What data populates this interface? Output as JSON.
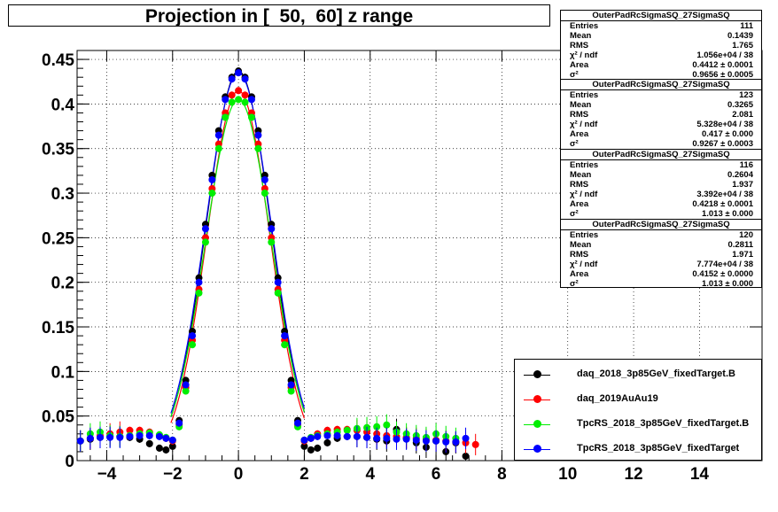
{
  "chart_data": {
    "type": "scatter",
    "title": "Projection in [  50,  60] z range",
    "xlim": [
      -4.9,
      15.9
    ],
    "ylim": [
      0,
      0.46
    ],
    "x_ticks": [
      -4,
      -2,
      0,
      2,
      4,
      6,
      8,
      10,
      12,
      14
    ],
    "x_tick_labels": [
      "−4",
      "−2",
      "0",
      "2",
      "4",
      "6",
      "8",
      "10",
      "12",
      "14"
    ],
    "y_ticks": [
      0,
      0.05,
      0.1,
      0.15,
      0.2,
      0.25,
      0.3,
      0.35,
      0.4,
      0.45
    ],
    "y_tick_labels": [
      "0",
      "0.05",
      "0.1",
      "0.15",
      "0.2",
      "0.25",
      "0.3",
      "0.35",
      "0.4",
      "0.45"
    ],
    "grid": true,
    "legend_position": "bottom-right",
    "series": [
      {
        "name": "daq_2018_3p85GeV_fixedTarget.B",
        "color": "#000000",
        "x": [
          -4.8,
          -4.5,
          -4.2,
          -3.9,
          -3.6,
          -3.3,
          -3.0,
          -2.7,
          -2.4,
          -2.2,
          -2.0,
          -1.8,
          -1.6,
          -1.4,
          -1.2,
          -1.0,
          -0.8,
          -0.6,
          -0.4,
          -0.2,
          0.0,
          0.2,
          0.4,
          0.6,
          0.8,
          1.0,
          1.2,
          1.4,
          1.6,
          1.8,
          2.0,
          2.2,
          2.4,
          2.7,
          3.0,
          3.3,
          3.6,
          3.9,
          4.2,
          4.5,
          4.8,
          5.1,
          5.4,
          5.7,
          6.0,
          6.3,
          6.6,
          6.9
        ],
        "y": [
          0.022,
          0.024,
          0.026,
          0.027,
          0.027,
          0.026,
          0.024,
          0.019,
          0.014,
          0.012,
          0.016,
          0.045,
          0.09,
          0.145,
          0.205,
          0.265,
          0.32,
          0.37,
          0.408,
          0.43,
          0.437,
          0.43,
          0.408,
          0.37,
          0.32,
          0.265,
          0.205,
          0.145,
          0.09,
          0.045,
          0.016,
          0.012,
          0.014,
          0.02,
          0.025,
          0.027,
          0.027,
          0.026,
          0.024,
          0.022,
          0.035,
          0.025,
          0.02,
          0.015,
          0.022,
          0.01,
          0.02,
          0.005
        ]
      },
      {
        "name": "daq_2019AuAu19",
        "color": "#ff0000",
        "x": [
          -4.8,
          -4.5,
          -4.2,
          -3.9,
          -3.6,
          -3.3,
          -3.0,
          -2.7,
          -2.4,
          -2.2,
          -2.0,
          -1.8,
          -1.6,
          -1.4,
          -1.2,
          -1.0,
          -0.8,
          -0.6,
          -0.4,
          -0.2,
          0.0,
          0.2,
          0.4,
          0.6,
          0.8,
          1.0,
          1.2,
          1.4,
          1.6,
          1.8,
          2.0,
          2.2,
          2.4,
          2.7,
          3.0,
          3.3,
          3.6,
          3.9,
          4.2,
          4.5,
          4.8,
          5.1,
          5.4,
          5.7,
          6.0,
          6.3,
          6.6,
          6.9,
          7.2
        ],
        "y": [
          0.022,
          0.025,
          0.028,
          0.03,
          0.032,
          0.034,
          0.034,
          0.032,
          0.028,
          0.025,
          0.022,
          0.04,
          0.082,
          0.135,
          0.192,
          0.25,
          0.305,
          0.355,
          0.39,
          0.41,
          0.415,
          0.41,
          0.39,
          0.355,
          0.305,
          0.25,
          0.192,
          0.135,
          0.082,
          0.04,
          0.022,
          0.025,
          0.03,
          0.034,
          0.035,
          0.035,
          0.034,
          0.032,
          0.03,
          0.028,
          0.027,
          0.026,
          0.025,
          0.024,
          0.023,
          0.022,
          0.021,
          0.02,
          0.018
        ]
      },
      {
        "name": "TpcRS_2018_3p85GeV_fixedTarget.B",
        "color": "#00ee00",
        "x": [
          -4.8,
          -4.5,
          -4.2,
          -3.9,
          -3.6,
          -3.3,
          -3.0,
          -2.7,
          -2.4,
          -2.2,
          -2.0,
          -1.8,
          -1.6,
          -1.4,
          -1.2,
          -1.0,
          -0.8,
          -0.6,
          -0.4,
          -0.2,
          0.0,
          0.2,
          0.4,
          0.6,
          0.8,
          1.0,
          1.2,
          1.4,
          1.6,
          1.8,
          2.0,
          2.2,
          2.4,
          2.7,
          3.0,
          3.3,
          3.6,
          3.9,
          4.2,
          4.5,
          4.8,
          5.1,
          5.4,
          5.7,
          6.0,
          6.3,
          6.6
        ],
        "y": [
          0.022,
          0.03,
          0.032,
          0.028,
          0.027,
          0.028,
          0.03,
          0.031,
          0.029,
          0.026,
          0.023,
          0.038,
          0.078,
          0.13,
          0.188,
          0.245,
          0.3,
          0.35,
          0.385,
          0.402,
          0.405,
          0.402,
          0.385,
          0.35,
          0.3,
          0.245,
          0.188,
          0.13,
          0.078,
          0.038,
          0.023,
          0.026,
          0.028,
          0.03,
          0.032,
          0.034,
          0.036,
          0.037,
          0.038,
          0.04,
          0.032,
          0.03,
          0.028,
          0.026,
          0.03,
          0.027,
          0.025
        ]
      },
      {
        "name": "TpcRS_2018_3p85GeV_fixedTarget",
        "color": "#0000ff",
        "x": [
          -4.8,
          -4.5,
          -4.2,
          -3.9,
          -3.6,
          -3.3,
          -3.0,
          -2.7,
          -2.4,
          -2.2,
          -2.0,
          -1.8,
          -1.6,
          -1.4,
          -1.2,
          -1.0,
          -0.8,
          -0.6,
          -0.4,
          -0.2,
          0.0,
          0.2,
          0.4,
          0.6,
          0.8,
          1.0,
          1.2,
          1.4,
          1.6,
          1.8,
          2.0,
          2.2,
          2.4,
          2.7,
          3.0,
          3.3,
          3.6,
          3.9,
          4.2,
          4.5,
          4.8,
          5.1,
          5.4,
          5.7,
          6.0,
          6.3,
          6.6,
          6.9
        ],
        "y": [
          0.022,
          0.025,
          0.026,
          0.026,
          0.026,
          0.027,
          0.028,
          0.028,
          0.027,
          0.025,
          0.023,
          0.042,
          0.085,
          0.14,
          0.2,
          0.26,
          0.315,
          0.365,
          0.405,
          0.428,
          0.435,
          0.428,
          0.405,
          0.365,
          0.315,
          0.26,
          0.2,
          0.14,
          0.085,
          0.042,
          0.023,
          0.025,
          0.027,
          0.028,
          0.028,
          0.027,
          0.027,
          0.026,
          0.025,
          0.025,
          0.024,
          0.024,
          0.023,
          0.022,
          0.022,
          0.021,
          0.021,
          0.025
        ]
      }
    ]
  },
  "stats": [
    {
      "title": "OuterPadRcSigmaSQ_27SigmaSQ",
      "rows": [
        [
          "Entries",
          "111"
        ],
        [
          "Mean",
          "0.1439"
        ],
        [
          "RMS",
          "1.765"
        ],
        [
          "χ² / ndf",
          "1.056e+04 / 38"
        ],
        [
          "Area",
          "0.4412 ± 0.0001"
        ],
        [
          "σ²",
          "0.9656 ± 0.0005"
        ]
      ]
    },
    {
      "title": "OuterPadRcSigmaSQ_27SigmaSQ",
      "rows": [
        [
          "Entries",
          "123"
        ],
        [
          "Mean",
          "0.3265"
        ],
        [
          "RMS",
          "2.081"
        ],
        [
          "χ² / ndf",
          "5.328e+04 / 38"
        ],
        [
          "Area",
          "0.417 ± 0.000"
        ],
        [
          "σ²",
          "0.9267 ± 0.0003"
        ]
      ]
    },
    {
      "title": "OuterPadRcSigmaSQ_27SigmaSQ",
      "rows": [
        [
          "Entries",
          "116"
        ],
        [
          "Mean",
          "0.2604"
        ],
        [
          "RMS",
          "1.937"
        ],
        [
          "χ² / ndf",
          "3.392e+04 / 38"
        ],
        [
          "Area",
          "0.4218 ± 0.0001"
        ],
        [
          "σ²",
          "1.013 ± 0.000"
        ]
      ]
    },
    {
      "title": "OuterPadRcSigmaSQ_27SigmaSQ",
      "rows": [
        [
          "Entries",
          "120"
        ],
        [
          "Mean",
          "0.2811"
        ],
        [
          "RMS",
          "1.971"
        ],
        [
          "χ² / ndf",
          "7.774e+04 / 38"
        ],
        [
          "Area",
          "0.4152 ± 0.0000"
        ],
        [
          "σ²",
          "1.013 ± 0.000"
        ]
      ]
    }
  ]
}
